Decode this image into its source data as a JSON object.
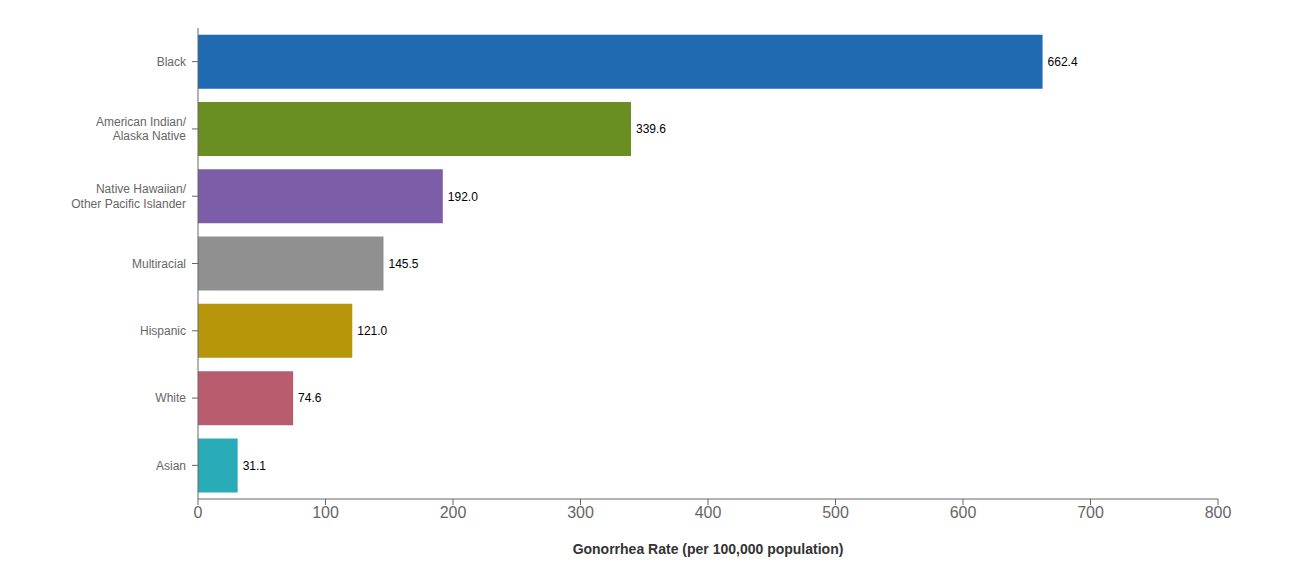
{
  "chart_data": {
    "type": "bar",
    "orientation": "horizontal",
    "categories": [
      "Asian",
      "White",
      "Hispanic",
      "Multiracial",
      "Native Hawaiian/\nOther Pacific Islander",
      "American Indian/\nAlaska Native",
      "Black"
    ],
    "values": [
      31.1,
      74.6,
      121.0,
      145.5,
      192.0,
      339.6,
      662.4
    ],
    "value_labels": [
      "31.1",
      "74.6",
      "121.0",
      "145.5",
      "192.0",
      "339.6",
      "662.4"
    ],
    "data_labels": true,
    "colors": [
      "#2aacb8",
      "#b85c6e",
      "#b8960c",
      "#909090",
      "#7b5ea7",
      "#6b8e23",
      "#1f6ab0"
    ],
    "xlabel": "Gonorrhea Rate (per 100,000 population)",
    "xlim": [
      0,
      800
    ],
    "xticks": [
      0,
      100,
      200,
      300,
      400,
      500,
      600,
      700,
      800
    ],
    "grid": false
  }
}
